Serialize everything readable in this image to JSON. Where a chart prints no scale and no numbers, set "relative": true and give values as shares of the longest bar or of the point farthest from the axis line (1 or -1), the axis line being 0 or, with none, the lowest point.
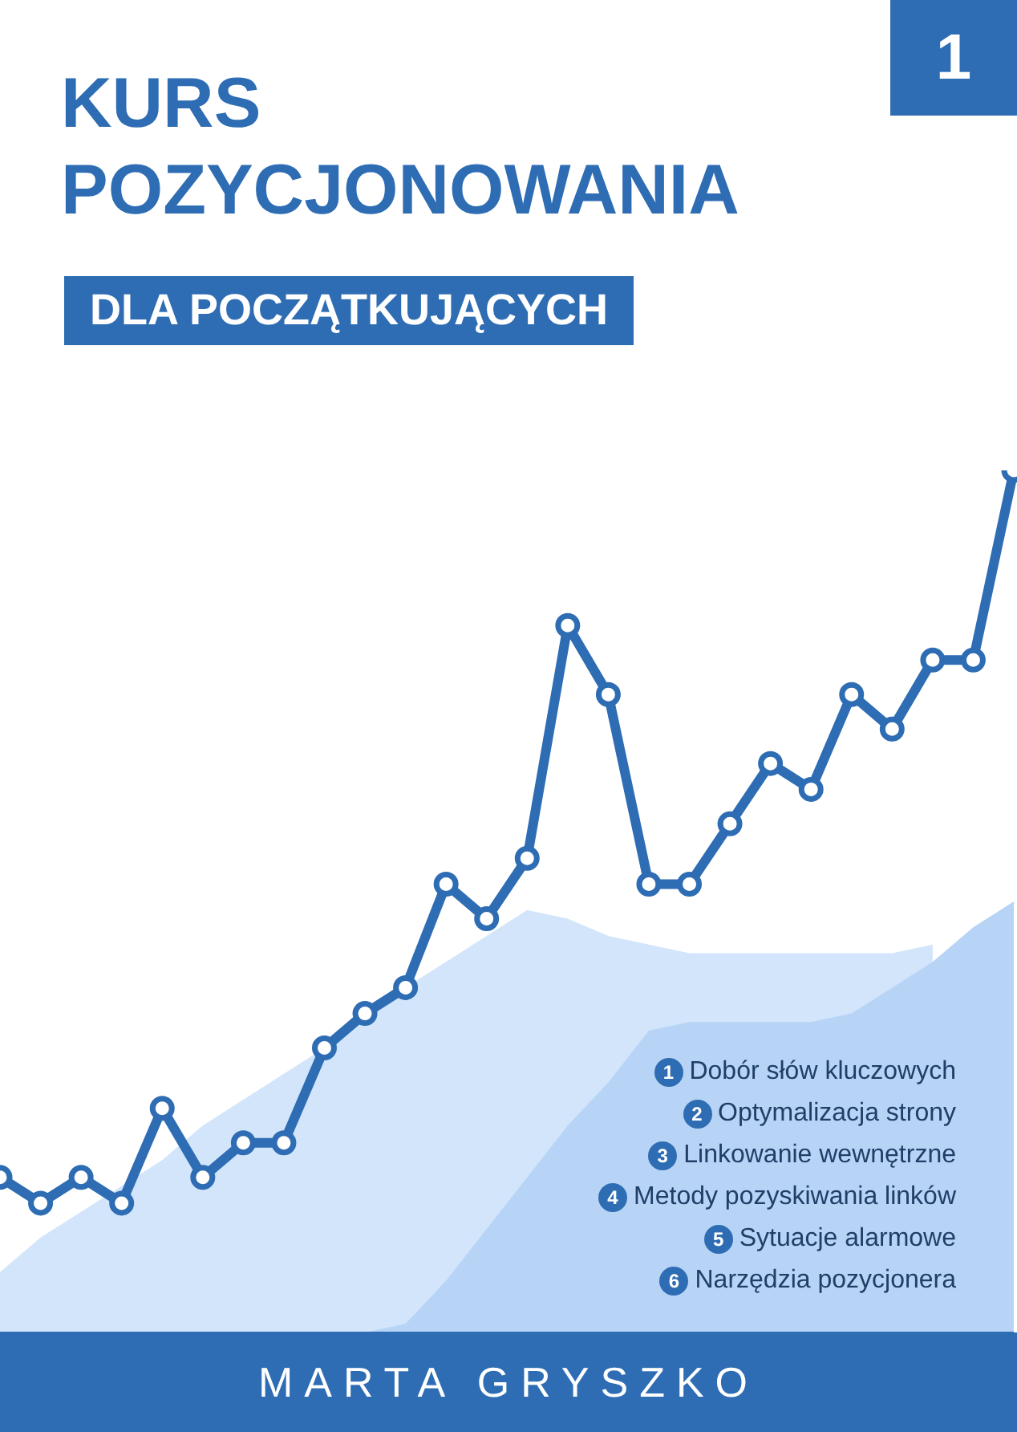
{
  "chart_data": {
    "type": "line",
    "title": "KURS POZYCJONOWANIA",
    "subtitle": "DLA POCZĄTKUJĄCYCH",
    "relative": true,
    "line_style": "solid",
    "legend": false,
    "grid": false,
    "categories": [
      null,
      null,
      null,
      null,
      null,
      null,
      null,
      null,
      null,
      null,
      null,
      null,
      null,
      null,
      null,
      null,
      null,
      null,
      null,
      null,
      null,
      null,
      null,
      null,
      null,
      null
    ],
    "series": [
      {
        "type": "area",
        "color": "#d2e5fb",
        "values": [
          0.07,
          0.11,
          0.14,
          0.17,
          0.2,
          0.24,
          0.27,
          0.3,
          0.33,
          0.37,
          0.4,
          0.43,
          0.46,
          0.49,
          0.48,
          0.46,
          0.45,
          0.44,
          0.44,
          0.44,
          0.44,
          0.44,
          0.44,
          0.45,
          null,
          null
        ]
      },
      {
        "type": "area",
        "color": "#b7d4f7",
        "values": [
          0,
          0,
          0,
          0,
          0,
          0,
          0,
          0,
          0,
          0,
          0.01,
          0.06,
          0.12,
          0.18,
          0.24,
          0.29,
          0.35,
          0.36,
          0.36,
          0.36,
          0.36,
          0.37,
          0.4,
          0.43,
          0.47,
          0.5
        ]
      },
      {
        "marker": "circle",
        "color": "#2e6db3",
        "values": [
          0.18,
          0.15,
          0.18,
          0.15,
          0.26,
          0.18,
          0.22,
          0.22,
          0.33,
          0.37,
          0.4,
          0.52,
          0.48,
          0.55,
          0.82,
          0.74,
          0.52,
          0.52,
          0.59,
          0.66,
          0.63,
          0.74,
          0.7,
          0.78,
          0.78,
          1
        ]
      }
    ],
    "annotations": [
      "1",
      "1 Dobór słów kluczowych",
      "2 Optymalizacja strony",
      "3 Linkowanie wewnętrzne",
      "4 Metody pozyskiwania linków",
      "5 Sytuacje alarmowe",
      "6 Narzędzia pozycjonera",
      "MARTA GRYSZKO"
    ]
  }
}
